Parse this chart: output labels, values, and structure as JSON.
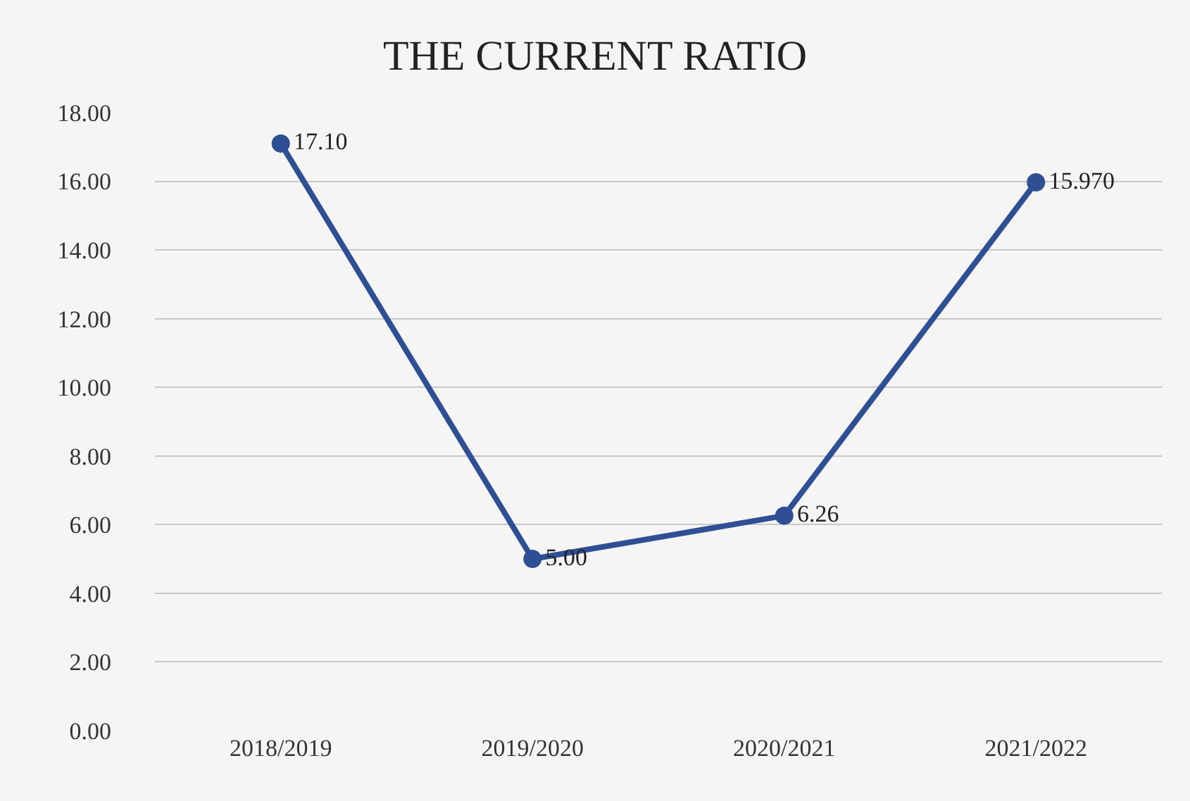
{
  "chart_data": {
    "type": "line",
    "title": "THE CURRENT RATIO",
    "categories": [
      "2018/2019",
      "2019/2020",
      "2020/2021",
      "2021/2022"
    ],
    "series": [
      {
        "color": "#2f4f95",
        "values": [
          17.1,
          5.0,
          6.26,
          15.97
        ],
        "value_labels": [
          "17.10",
          "5.00",
          "6.26",
          "15.970"
        ]
      }
    ],
    "ylim": [
      0,
      18
    ],
    "yticks": [
      {
        "value": 0,
        "label": "0.00"
      },
      {
        "value": 2,
        "label": "2.00"
      },
      {
        "value": 4,
        "label": "4.00"
      },
      {
        "value": 6,
        "label": "6.00"
      },
      {
        "value": 8,
        "label": "8.00"
      },
      {
        "value": 10,
        "label": "10.00"
      },
      {
        "value": 12,
        "label": "12.00"
      },
      {
        "value": 14,
        "label": "14.00"
      },
      {
        "value": 16,
        "label": "16.00"
      },
      {
        "value": 18,
        "label": "18.00"
      }
    ],
    "grid": "y",
    "marker": "circle",
    "line_style": "solid",
    "legend": false
  }
}
